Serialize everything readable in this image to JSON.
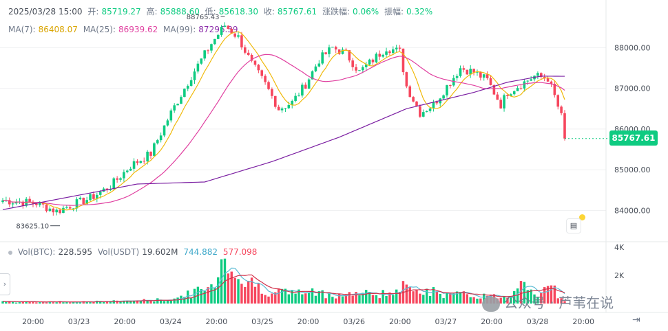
{
  "header": {
    "datetime": "2025/03/28 15:00",
    "open_label": "开:",
    "open": "85719.27",
    "high_label": "高:",
    "high": "85888.60",
    "low_label": "低:",
    "low": "85618.30",
    "close_label": "收:",
    "close": "85767.61",
    "change_label": "涨跌幅:",
    "change": "0.06%",
    "amp_label": "振幅:",
    "amp": "0.32%"
  },
  "ma": {
    "ma7_label": "MA(7):",
    "ma7": "86408.07",
    "ma25_label": "MA(25):",
    "ma25": "86939.62",
    "ma99_label": "MA(99):",
    "ma99": "87296.39"
  },
  "volume": {
    "btc_label": "Vol(BTC):",
    "btc": "228.595",
    "usdt_label": "Vol(USDT)",
    "usdt": "19.602M",
    "ma1": "744.882",
    "ma2": "577.098"
  },
  "current_price": "85767.61",
  "watermark": "公众号 · 芦苇在说",
  "colors": {
    "up": "#0ecb81",
    "down": "#f6465d",
    "ma7": "#f0b90b",
    "ma25": "#e040a0",
    "ma99": "#7b1fa2",
    "vol_ma1": "#5cbbd4",
    "vol_ma2": "#d1314a"
  },
  "icons": {
    "collapse": "chevron-right-icon",
    "order": "order-book-icon",
    "scroll": "scroll-to-latest-icon"
  },
  "chart_data": {
    "type": "candlestick",
    "interval": "1h",
    "price_axis": {
      "ticks": [
        84000,
        85000,
        86000,
        87000,
        88000
      ],
      "tick_labels": [
        "84000.00",
        "85000.00",
        "86000.00",
        "87000.00",
        "88000.00"
      ],
      "ylim": [
        83300,
        88900
      ]
    },
    "volume_axis": {
      "ticks": [
        2000,
        4000
      ],
      "tick_labels": [
        "2K",
        "4K"
      ]
    },
    "x_tick_labels": [
      "20:00",
      "03/23",
      "20:00",
      "03/24",
      "20:00",
      "03/25",
      "20:00",
      "03/26",
      "20:00",
      "03/27",
      "20:00",
      "03/28",
      "20:00"
    ],
    "annotations": [
      {
        "label": "88765.43",
        "value": 88765.43
      },
      {
        "label": "83625.10",
        "value": 83625.1
      }
    ],
    "series": [
      {
        "name": "MA(7)",
        "last": 86408.07
      },
      {
        "name": "MA(25)",
        "last": 86939.62
      },
      {
        "name": "MA(99)",
        "last": 87296.39
      }
    ],
    "close_anchors": [
      [
        0,
        84250
      ],
      [
        10,
        84180
      ],
      [
        16,
        83980
      ],
      [
        20,
        84120
      ],
      [
        26,
        84300
      ],
      [
        32,
        84600
      ],
      [
        38,
        85100
      ],
      [
        44,
        85400
      ],
      [
        50,
        86400
      ],
      [
        56,
        87300
      ],
      [
        62,
        88100
      ],
      [
        66,
        88550
      ],
      [
        70,
        88250
      ],
      [
        74,
        87600
      ],
      [
        78,
        87100
      ],
      [
        82,
        86500
      ],
      [
        86,
        86650
      ],
      [
        90,
        87100
      ],
      [
        94,
        87700
      ],
      [
        98,
        88000
      ],
      [
        102,
        87850
      ],
      [
        106,
        87400
      ],
      [
        110,
        87700
      ],
      [
        114,
        88000
      ],
      [
        118,
        87900
      ],
      [
        120,
        87050
      ],
      [
        124,
        86400
      ],
      [
        128,
        86600
      ],
      [
        132,
        87050
      ],
      [
        136,
        87500
      ],
      [
        140,
        87400
      ],
      [
        144,
        87200
      ],
      [
        148,
        86600
      ],
      [
        150,
        86900
      ],
      [
        154,
        87100
      ],
      [
        158,
        87300
      ],
      [
        162,
        87250
      ],
      [
        164,
        86800
      ],
      [
        166,
        86300
      ],
      [
        167,
        85767.61
      ]
    ],
    "ma99_anchors": [
      [
        0,
        84020
      ],
      [
        40,
        84650
      ],
      [
        60,
        84700
      ],
      [
        80,
        85200
      ],
      [
        100,
        85800
      ],
      [
        120,
        86500
      ],
      [
        140,
        86900
      ],
      [
        150,
        87150
      ],
      [
        160,
        87300
      ],
      [
        167,
        87296.39
      ]
    ],
    "volume_anchors": [
      [
        0,
        120
      ],
      [
        30,
        150
      ],
      [
        50,
        300
      ],
      [
        62,
        1200
      ],
      [
        66,
        3900
      ],
      [
        70,
        1800
      ],
      [
        80,
        900
      ],
      [
        100,
        700
      ],
      [
        118,
        800
      ],
      [
        120,
        1500
      ],
      [
        130,
        700
      ],
      [
        150,
        500
      ],
      [
        155,
        2200
      ],
      [
        158,
        600
      ],
      [
        163,
        1200
      ],
      [
        167,
        228.595
      ]
    ]
  }
}
